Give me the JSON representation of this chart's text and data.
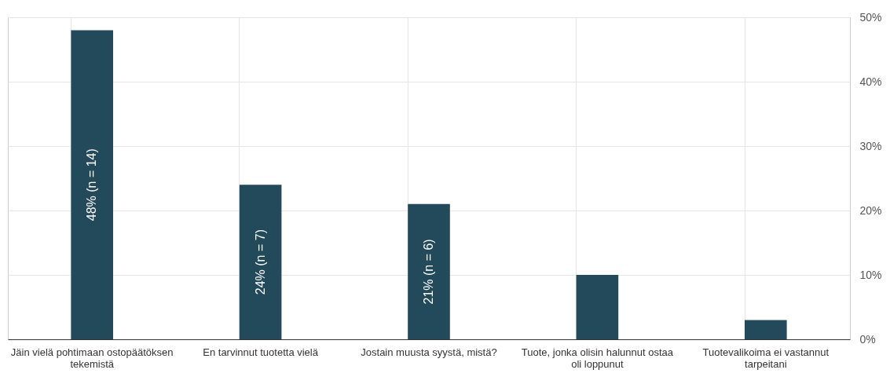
{
  "chart_data": {
    "type": "bar",
    "categories": [
      "Jäin vielä pohtimaan ostopäätöksen tekemistä",
      "En tarvinnut tuotetta vielä",
      "Jostain muusta syystä, mistä?",
      "Tuote, jonka olisin halunnut ostaa oli loppunut",
      "Tuotevalikoima ei vastannut tarpeitani"
    ],
    "values": [
      48,
      24,
      21,
      10,
      3
    ],
    "value_labels": [
      "48% (n = 14)",
      "24% (n = 7)",
      "21% (n = 6)",
      null,
      null
    ],
    "color": "#234a5a",
    "ylim": [
      0,
      50
    ],
    "yticks": [
      {
        "value": 0,
        "label": "0%"
      },
      {
        "value": 10,
        "label": "10%"
      },
      {
        "value": 20,
        "label": "20%"
      },
      {
        "value": 30,
        "label": "30%"
      },
      {
        "value": 40,
        "label": "40%"
      },
      {
        "value": 50,
        "label": "50%"
      }
    ],
    "grid": true
  }
}
